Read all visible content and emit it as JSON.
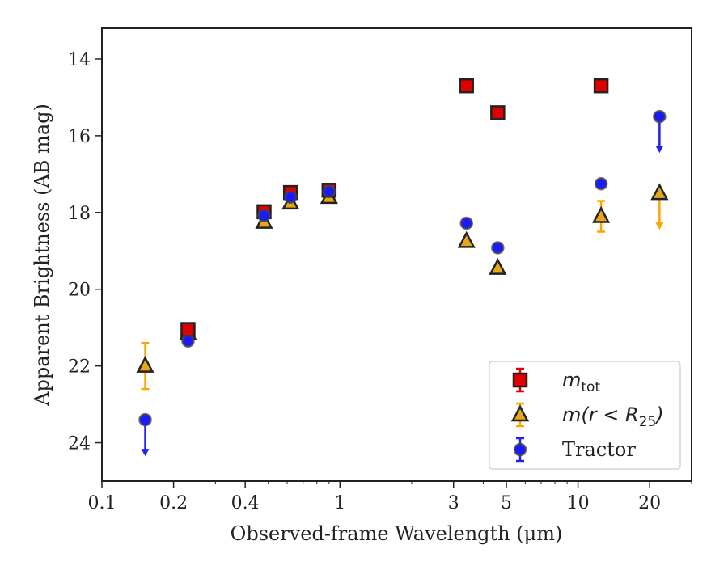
{
  "chart_data": {
    "type": "scatter",
    "xlabel": "Observed-frame Wavelength (μm)",
    "ylabel": "Apparent Brightness (AB mag)",
    "xscale": "log",
    "xlim": [
      0.1,
      30
    ],
    "ylim": [
      25.0,
      13.2
    ],
    "y_inverted": true,
    "x_ticks": [
      0.1,
      0.2,
      0.4,
      1,
      3,
      5,
      10,
      20
    ],
    "x_tick_labels": [
      "0.1",
      "0.2",
      "0.4",
      "1",
      "3",
      "5",
      "10",
      "20"
    ],
    "y_ticks": [
      14,
      16,
      18,
      20,
      22,
      24
    ],
    "y_tick_labels": [
      "14",
      "16",
      "18",
      "20",
      "22",
      "24"
    ],
    "grid": false,
    "legend_position": "lower-right",
    "series": [
      {
        "name": "m_tot",
        "legend_label": "m",
        "legend_sub": "tot",
        "marker": "square",
        "color": "#e00000",
        "edge": "#222222",
        "errcolor": "#e00000",
        "points": [
          {
            "x": 0.23,
            "y": 21.05,
            "err": 0.15
          },
          {
            "x": 0.48,
            "y": 17.98,
            "err": 0.1
          },
          {
            "x": 0.62,
            "y": 17.48,
            "err": 0.1
          },
          {
            "x": 0.9,
            "y": 17.42,
            "err": 0.05
          },
          {
            "x": 3.4,
            "y": 14.7
          },
          {
            "x": 4.6,
            "y": 15.4
          },
          {
            "x": 12.5,
            "y": 14.7
          }
        ]
      },
      {
        "name": "m(r < R_25)",
        "legend_label": "m(r < R",
        "legend_sub": "25",
        "legend_tail": ")",
        "marker": "triangle",
        "color": "#e6a817",
        "edge": "#222222",
        "errcolor": "#ffa500",
        "points": [
          {
            "x": 0.152,
            "y": 22.0,
            "err": 0.6
          },
          {
            "x": 0.23,
            "y": 21.15,
            "err": 0.15
          },
          {
            "x": 0.48,
            "y": 18.25,
            "err": 0.1
          },
          {
            "x": 0.62,
            "y": 17.75,
            "err": 0.1
          },
          {
            "x": 0.9,
            "y": 17.6,
            "err": 0.05
          },
          {
            "x": 3.4,
            "y": 18.75
          },
          {
            "x": 4.6,
            "y": 19.45
          },
          {
            "x": 12.5,
            "y": 18.1,
            "err": 0.4
          },
          {
            "x": 22,
            "y": 17.5,
            "upper_limit": true
          }
        ]
      },
      {
        "name": "Tractor",
        "legend_label": "Tractor",
        "marker": "circle",
        "color": "#1a1aff",
        "edge": "#444444",
        "errcolor": "#2222ee",
        "points": [
          {
            "x": 0.152,
            "y": 23.4,
            "upper_limit": true
          },
          {
            "x": 0.23,
            "y": 21.35
          },
          {
            "x": 0.48,
            "y": 18.08
          },
          {
            "x": 0.62,
            "y": 17.6
          },
          {
            "x": 0.9,
            "y": 17.45
          },
          {
            "x": 3.4,
            "y": 18.28
          },
          {
            "x": 4.6,
            "y": 18.92
          },
          {
            "x": 12.5,
            "y": 17.25
          },
          {
            "x": 22,
            "y": 15.5,
            "upper_limit": true
          }
        ]
      }
    ]
  }
}
